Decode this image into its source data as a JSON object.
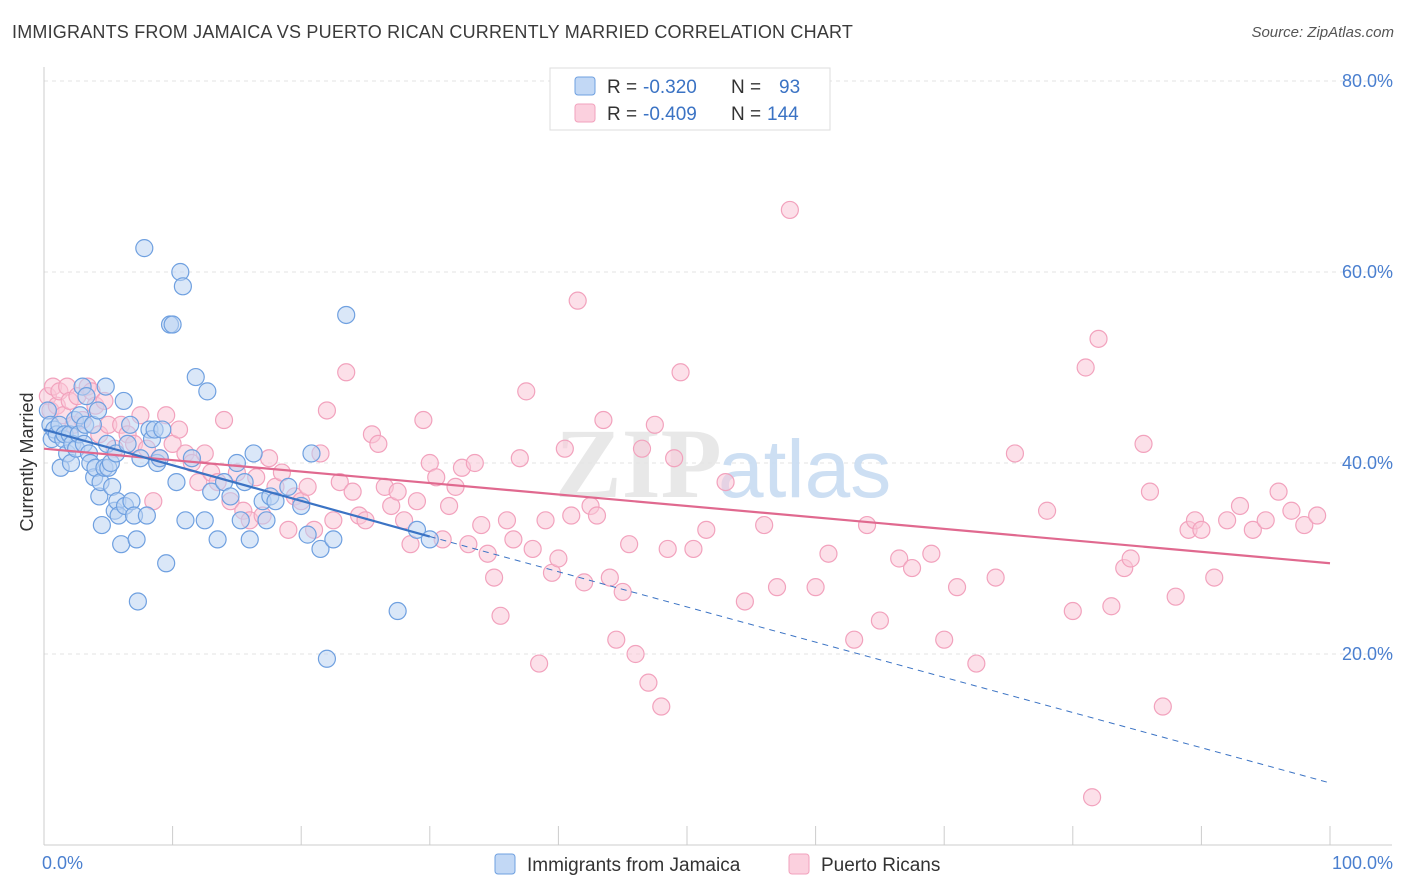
{
  "title": "IMMIGRANTS FROM JAMAICA VS PUERTO RICAN CURRENTLY MARRIED CORRELATION CHART",
  "source": "Source: ZipAtlas.com",
  "watermark": {
    "zip": "ZIP",
    "atlas": "atlas"
  },
  "chart_data": {
    "type": "scatter",
    "xlabel": "",
    "ylabel": "Currently Married",
    "xlim": [
      0,
      100
    ],
    "ylim": [
      0,
      85
    ],
    "x_ticks": [
      {
        "value": 0,
        "label": "0.0%"
      },
      {
        "value": 100,
        "label": "100.0%"
      }
    ],
    "y_ticks": [
      {
        "value": 20,
        "label": "20.0%"
      },
      {
        "value": 40,
        "label": "40.0%"
      },
      {
        "value": 60,
        "label": "60.0%"
      },
      {
        "value": 80,
        "label": "80.0%"
      }
    ],
    "grid": "horizontal dashed",
    "legend_top": [
      {
        "r_label": "R =",
        "r_value": "-0.320",
        "n_label": "N =",
        "n_value": "93"
      },
      {
        "r_label": "R =",
        "r_value": "-0.409",
        "n_label": "N =",
        "n_value": "144"
      }
    ],
    "series": [
      {
        "name": "Immigrants from Jamaica",
        "color": "#6fa0e0",
        "line_color": "#3b73c4",
        "trend": {
          "x0": 0,
          "y0": 43.5,
          "x1": 30,
          "y1": 32.3,
          "dash_to_x": 100,
          "dash_to_y": 6.5
        },
        "points": [
          [
            0.3,
            45.5
          ],
          [
            0.5,
            44
          ],
          [
            0.6,
            42.5
          ],
          [
            0.8,
            43.5
          ],
          [
            1.0,
            43
          ],
          [
            1.2,
            44
          ],
          [
            1.3,
            39.5
          ],
          [
            1.5,
            42.5
          ],
          [
            1.6,
            43
          ],
          [
            1.8,
            41
          ],
          [
            2.0,
            43
          ],
          [
            2.1,
            40
          ],
          [
            2.2,
            42
          ],
          [
            2.4,
            44.5
          ],
          [
            2.5,
            41.5
          ],
          [
            2.7,
            43
          ],
          [
            2.8,
            45
          ],
          [
            3.0,
            48
          ],
          [
            3.1,
            42
          ],
          [
            3.2,
            44
          ],
          [
            3.3,
            47
          ],
          [
            3.5,
            41
          ],
          [
            3.6,
            40
          ],
          [
            3.8,
            44
          ],
          [
            3.9,
            38.5
          ],
          [
            4.0,
            39.5
          ],
          [
            4.2,
            45.5
          ],
          [
            4.3,
            36.5
          ],
          [
            4.4,
            38
          ],
          [
            4.5,
            33.5
          ],
          [
            4.7,
            39.5
          ],
          [
            4.8,
            48
          ],
          [
            4.9,
            42
          ],
          [
            5.0,
            39.5
          ],
          [
            5.2,
            40
          ],
          [
            5.3,
            37.5
          ],
          [
            5.5,
            35
          ],
          [
            5.6,
            41
          ],
          [
            5.7,
            36
          ],
          [
            5.8,
            34.5
          ],
          [
            6.0,
            31.5
          ],
          [
            6.2,
            46.5
          ],
          [
            6.3,
            35.5
          ],
          [
            6.5,
            42
          ],
          [
            6.7,
            44
          ],
          [
            6.8,
            36
          ],
          [
            7.0,
            34.5
          ],
          [
            7.2,
            32
          ],
          [
            7.3,
            25.5
          ],
          [
            7.5,
            40.5
          ],
          [
            7.8,
            62.5
          ],
          [
            8.0,
            34.5
          ],
          [
            8.2,
            43.5
          ],
          [
            8.4,
            42.5
          ],
          [
            8.6,
            43.5
          ],
          [
            8.8,
            40
          ],
          [
            9.0,
            40.5
          ],
          [
            9.2,
            43.5
          ],
          [
            9.5,
            29.5
          ],
          [
            9.8,
            54.5
          ],
          [
            10.0,
            54.5
          ],
          [
            10.3,
            38
          ],
          [
            10.6,
            60
          ],
          [
            10.8,
            58.5
          ],
          [
            11.0,
            34
          ],
          [
            11.5,
            40.5
          ],
          [
            11.8,
            49
          ],
          [
            12.5,
            34
          ],
          [
            12.7,
            47.5
          ],
          [
            13.0,
            37
          ],
          [
            13.5,
            32
          ],
          [
            14.0,
            38
          ],
          [
            14.5,
            36.5
          ],
          [
            15.0,
            40
          ],
          [
            15.3,
            34
          ],
          [
            15.6,
            38
          ],
          [
            16.0,
            32
          ],
          [
            16.3,
            41
          ],
          [
            17.0,
            36
          ],
          [
            17.3,
            34
          ],
          [
            17.6,
            36.5
          ],
          [
            18.0,
            36
          ],
          [
            19.0,
            37.5
          ],
          [
            20.0,
            35.5
          ],
          [
            20.5,
            32.5
          ],
          [
            20.8,
            41
          ],
          [
            21.5,
            31
          ],
          [
            22.0,
            19.5
          ],
          [
            22.5,
            32
          ],
          [
            23.5,
            55.5
          ],
          [
            27.5,
            24.5
          ],
          [
            29.0,
            33
          ],
          [
            30.0,
            32
          ]
        ]
      },
      {
        "name": "Puerto Ricans",
        "color": "#f2a2bd",
        "line_color": "#e0698f",
        "trend": {
          "x0": 0,
          "y0": 41.5,
          "x1": 100,
          "y1": 29.5
        },
        "points": [
          [
            0.3,
            47
          ],
          [
            0.5,
            45.5
          ],
          [
            0.7,
            48
          ],
          [
            1.0,
            46
          ],
          [
            1.2,
            47.5
          ],
          [
            1.5,
            45
          ],
          [
            1.8,
            48
          ],
          [
            2.0,
            46.5
          ],
          [
            2.3,
            44
          ],
          [
            2.6,
            47
          ],
          [
            3.0,
            44.5
          ],
          [
            3.4,
            48
          ],
          [
            3.7,
            47.5
          ],
          [
            4.0,
            46
          ],
          [
            4.3,
            43
          ],
          [
            4.7,
            46.5
          ],
          [
            5.0,
            44
          ],
          [
            5.5,
            41.5
          ],
          [
            6.0,
            44
          ],
          [
            6.5,
            43
          ],
          [
            7.0,
            42
          ],
          [
            7.5,
            45
          ],
          [
            8.0,
            41.5
          ],
          [
            8.5,
            36
          ],
          [
            9.0,
            40.5
          ],
          [
            9.5,
            45
          ],
          [
            10.0,
            42
          ],
          [
            10.5,
            43.5
          ],
          [
            11.0,
            41
          ],
          [
            11.5,
            40
          ],
          [
            12.0,
            38
          ],
          [
            12.5,
            41
          ],
          [
            13.0,
            39
          ],
          [
            13.5,
            38
          ],
          [
            14.0,
            44.5
          ],
          [
            14.5,
            36
          ],
          [
            15.0,
            39
          ],
          [
            15.5,
            35
          ],
          [
            16.0,
            34
          ],
          [
            16.5,
            38.5
          ],
          [
            17.0,
            34.5
          ],
          [
            17.5,
            40.5
          ],
          [
            18.0,
            37.5
          ],
          [
            18.5,
            39
          ],
          [
            19.0,
            33
          ],
          [
            19.5,
            36.5
          ],
          [
            20.0,
            36
          ],
          [
            20.5,
            37.5
          ],
          [
            21.0,
            33
          ],
          [
            21.5,
            41
          ],
          [
            22.0,
            45.5
          ],
          [
            22.5,
            34
          ],
          [
            23.0,
            38
          ],
          [
            23.5,
            49.5
          ],
          [
            24.0,
            37
          ],
          [
            24.5,
            34.5
          ],
          [
            25.0,
            34
          ],
          [
            25.5,
            43
          ],
          [
            26.0,
            42
          ],
          [
            26.5,
            37.5
          ],
          [
            27.0,
            35.5
          ],
          [
            27.5,
            37
          ],
          [
            28.0,
            34
          ],
          [
            28.5,
            31.5
          ],
          [
            29.0,
            36
          ],
          [
            29.5,
            44.5
          ],
          [
            30.0,
            40
          ],
          [
            30.5,
            38.5
          ],
          [
            31.0,
            32
          ],
          [
            31.5,
            35.5
          ],
          [
            32.0,
            37.5
          ],
          [
            32.5,
            39.5
          ],
          [
            33.0,
            31.5
          ],
          [
            33.5,
            40
          ],
          [
            34.0,
            33.5
          ],
          [
            34.5,
            30.5
          ],
          [
            35.0,
            28
          ],
          [
            35.5,
            24
          ],
          [
            36.0,
            34
          ],
          [
            36.5,
            32
          ],
          [
            37.0,
            40.5
          ],
          [
            37.5,
            47.5
          ],
          [
            38.0,
            31
          ],
          [
            38.5,
            19
          ],
          [
            39.0,
            34
          ],
          [
            39.5,
            28.5
          ],
          [
            40.0,
            30
          ],
          [
            40.5,
            41.5
          ],
          [
            41.0,
            34.5
          ],
          [
            41.5,
            57
          ],
          [
            42.0,
            27.5
          ],
          [
            42.5,
            35.5
          ],
          [
            43.0,
            34.5
          ],
          [
            43.5,
            44.5
          ],
          [
            44.0,
            28
          ],
          [
            44.5,
            21.5
          ],
          [
            45.0,
            26.5
          ],
          [
            45.5,
            31.5
          ],
          [
            46.0,
            20
          ],
          [
            46.5,
            41.5
          ],
          [
            47.0,
            17
          ],
          [
            47.5,
            44
          ],
          [
            48.0,
            14.5
          ],
          [
            48.5,
            31
          ],
          [
            49.0,
            40.5
          ],
          [
            49.5,
            49.5
          ],
          [
            50.5,
            31
          ],
          [
            51.5,
            33
          ],
          [
            53.0,
            38
          ],
          [
            54.5,
            25.5
          ],
          [
            56.0,
            33.5
          ],
          [
            57.0,
            27
          ],
          [
            58.0,
            66.5
          ],
          [
            60.0,
            27
          ],
          [
            61.0,
            30.5
          ],
          [
            63.0,
            21.5
          ],
          [
            64.0,
            33.5
          ],
          [
            65.0,
            23.5
          ],
          [
            66.5,
            30
          ],
          [
            67.5,
            29
          ],
          [
            69.0,
            30.5
          ],
          [
            70.0,
            21.5
          ],
          [
            71.0,
            27
          ],
          [
            72.5,
            19
          ],
          [
            74.0,
            28
          ],
          [
            75.5,
            41
          ],
          [
            78.0,
            35
          ],
          [
            80.0,
            24.5
          ],
          [
            81.0,
            50
          ],
          [
            82.0,
            53
          ],
          [
            83.0,
            25
          ],
          [
            84.0,
            29
          ],
          [
            84.5,
            30
          ],
          [
            85.5,
            42
          ],
          [
            86.0,
            37
          ],
          [
            87.0,
            14.5
          ],
          [
            88.0,
            26
          ],
          [
            89.0,
            33
          ],
          [
            89.5,
            34
          ],
          [
            90.0,
            33
          ],
          [
            91.0,
            28
          ],
          [
            92.0,
            34
          ],
          [
            93.0,
            35.5
          ],
          [
            94.0,
            33
          ],
          [
            95.0,
            34
          ],
          [
            96.0,
            37
          ],
          [
            97.0,
            35
          ],
          [
            98.0,
            33.5
          ],
          [
            99.0,
            34.5
          ],
          [
            81.5,
            5
          ]
        ]
      }
    ]
  }
}
